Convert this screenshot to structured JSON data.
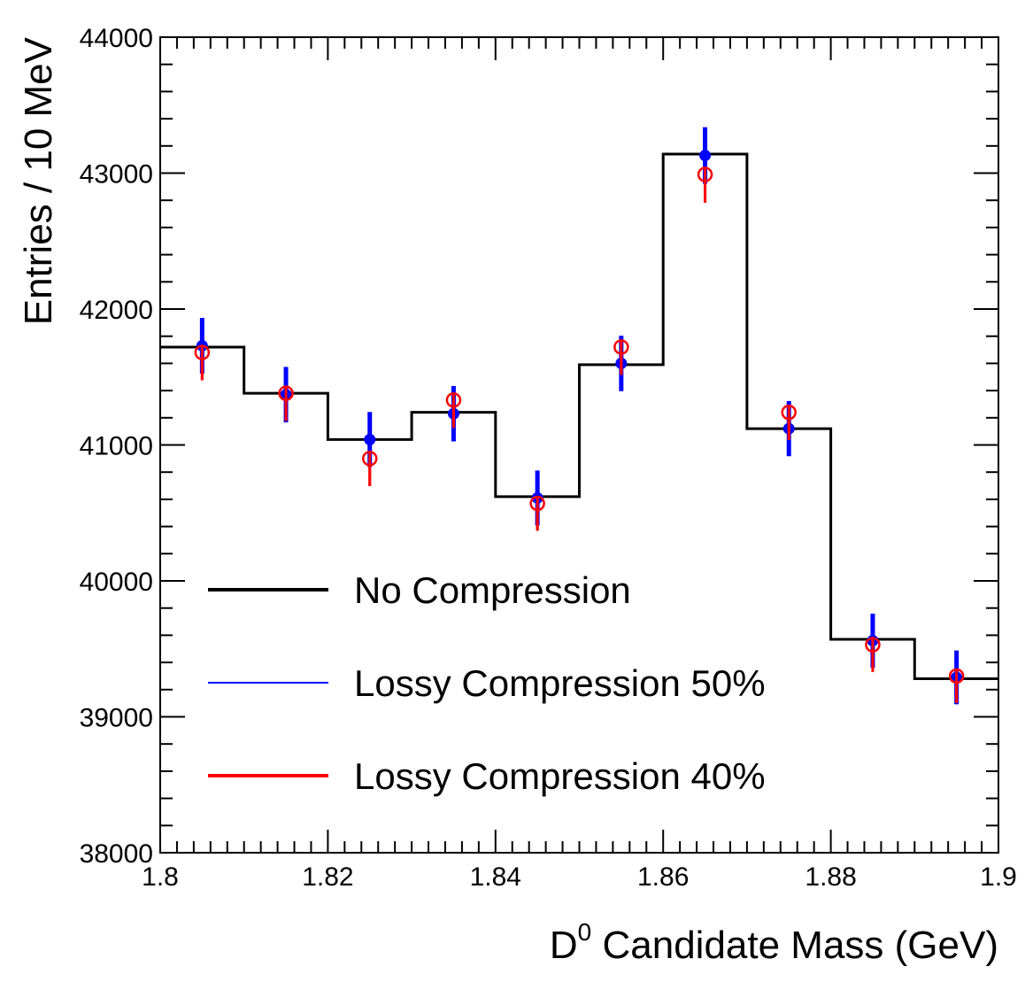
{
  "chart_data": {
    "type": "line",
    "xlabel": {
      "main": "D",
      "sup": "0",
      "rest": " Candidate Mass (GeV)"
    },
    "ylabel": "Entries / 10 MeV",
    "xlim": [
      1.8,
      1.9
    ],
    "ylim": [
      38000,
      44000
    ],
    "xticks": [
      "1.8",
      "1.82",
      "1.84",
      "1.86",
      "1.88",
      "1.9"
    ],
    "yticks": [
      "38000",
      "39000",
      "40000",
      "41000",
      "42000",
      "43000",
      "44000"
    ],
    "bin_edges": [
      1.8,
      1.81,
      1.82,
      1.83,
      1.84,
      1.85,
      1.86,
      1.87,
      1.88,
      1.89,
      1.9
    ],
    "legend_position": "bottom-left",
    "colors": {
      "no_compression": "#000000",
      "lossy_50": "#0000ff",
      "lossy_40": "#ff0000"
    },
    "series": [
      {
        "name": "No Compression",
        "style": "histogram",
        "values": [
          41720,
          41380,
          41040,
          41240,
          40620,
          41590,
          43140,
          41120,
          39570,
          39280
        ]
      },
      {
        "name": "Lossy Compression 50%",
        "style": "points-filled",
        "x": [
          1.805,
          1.815,
          1.825,
          1.835,
          1.845,
          1.855,
          1.865,
          1.875,
          1.885,
          1.895
        ],
        "values": [
          41730,
          41370,
          41040,
          41230,
          40610,
          41600,
          43130,
          41120,
          39560,
          39290
        ],
        "errors": [
          205,
          204,
          203,
          204,
          202,
          204,
          208,
          203,
          199,
          198
        ]
      },
      {
        "name": "Lossy Compression 40%",
        "style": "points-open",
        "x": [
          1.805,
          1.815,
          1.825,
          1.835,
          1.845,
          1.855,
          1.865,
          1.875,
          1.885,
          1.895
        ],
        "values": [
          41680,
          41380,
          40900,
          41330,
          40570,
          41720,
          42990,
          41240,
          39530,
          39300
        ],
        "errors": [
          204,
          204,
          202,
          204,
          201,
          204,
          207,
          203,
          199,
          198
        ]
      }
    ]
  }
}
